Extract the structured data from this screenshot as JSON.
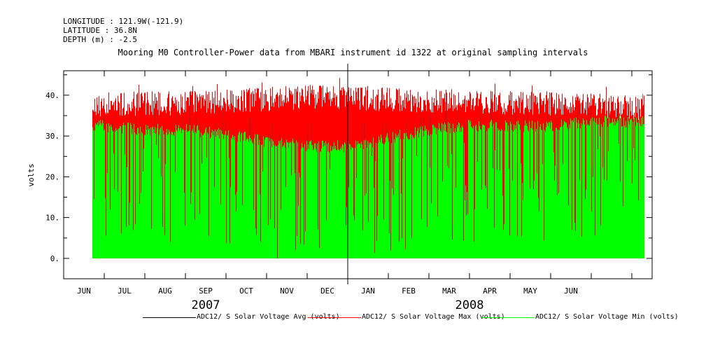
{
  "header": {
    "longitude": "LONGITUDE : 121.9W(-121.9)",
    "latitude": "LATITUDE : 36.8N",
    "depth": "DEPTH (m) : -2.5"
  },
  "chart_data": {
    "type": "area",
    "title": "Mooring M0 Controller-Power data from MBARI instrument id 1322 at original sampling intervals",
    "xlabel": "",
    "ylabel": "volts",
    "ylim": [
      -5,
      46
    ],
    "yticks": [
      0,
      10,
      20,
      30,
      40
    ],
    "ytick_labels": [
      "0.",
      "10.",
      "20.",
      "30.",
      "40."
    ],
    "x_range_months": [
      0,
      14.5
    ],
    "month_labels": [
      "JUN",
      "JUL",
      "AUG",
      "SEP",
      "OCT",
      "NOV",
      "DEC",
      "JAN",
      "FEB",
      "MAR",
      "APR",
      "MAY",
      "JUN"
    ],
    "year_labels": [
      {
        "label": "2007",
        "month_center": 3.5
      },
      {
        "label": "2008",
        "month_center": 10.0
      }
    ],
    "data_start_month": 0.7,
    "data_end_month": 14.3,
    "series": [
      {
        "name": "ADC12/ S Solar Voltage Avg (volts)",
        "color": "#000000",
        "typical_range": [
          0,
          38
        ]
      },
      {
        "name": "ADC12/ S Solar Voltage Max (volts)",
        "color": "#ff0000",
        "typical_range": [
          35,
          43
        ]
      },
      {
        "name": "ADC12/ S Solar Voltage Min (volts)",
        "color": "#00ff00",
        "typical_range": [
          0,
          35
        ]
      }
    ],
    "monthly_typical_max": [
      40,
      40.5,
      41,
      41,
      41.5,
      42,
      42.5,
      42.5,
      42,
      41.5,
      41.5,
      41,
      41,
      40.5,
      40
    ],
    "monthly_typical_min_top": [
      34,
      34,
      33,
      33,
      32,
      30,
      29,
      29,
      31,
      33,
      34,
      34,
      34,
      35,
      35
    ],
    "legend": [
      {
        "label": "ADC12/ S Solar Voltage Avg (volts)",
        "color": "#000000"
      },
      {
        "label": "ADC12/ S Solar Voltage Max (volts)",
        "color": "#ff0000"
      },
      {
        "label": "ADC12/ S Solar Voltage Min (volts)",
        "color": "#00ff00"
      }
    ]
  }
}
